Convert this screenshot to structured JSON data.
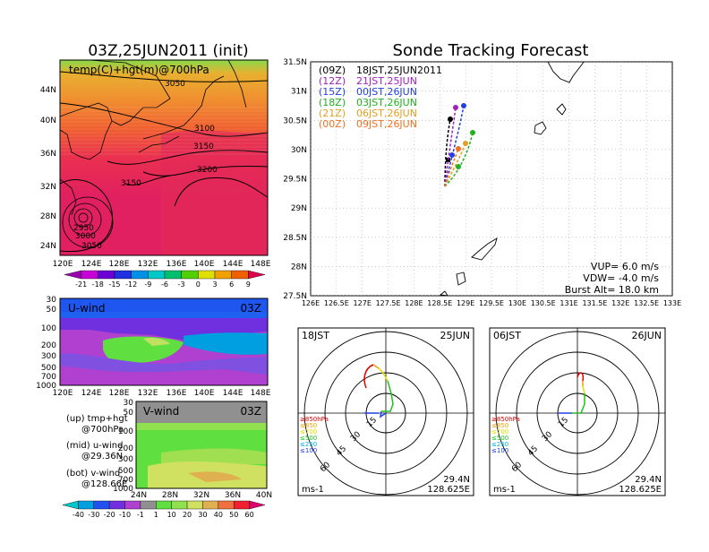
{
  "left_panel": {
    "title": "03Z,25JUN2011 (init)",
    "map_label": "temp(C)+hgt(m)@700hPa",
    "lat_ticks": [
      "44N",
      "40N",
      "36N",
      "32N",
      "28N",
      "24N"
    ],
    "lon_ticks": [
      "120E",
      "124E",
      "128E",
      "132E",
      "136E",
      "140E",
      "144E",
      "148E"
    ],
    "contour_labels": [
      "3050",
      "3100",
      "3150",
      "3200",
      "3150",
      "2950",
      "3000",
      "3050"
    ],
    "temp_colorbar": [
      "-21",
      "-18",
      "-15",
      "-12",
      "-9",
      "-6",
      "-3",
      "0",
      "3",
      "6",
      "9"
    ],
    "temp_colors": [
      "#9b00b0",
      "#c800d8",
      "#6a00d6",
      "#2030e0",
      "#0090e8",
      "#00c8c8",
      "#00c070",
      "#50d000",
      "#e0e000",
      "#f0a000",
      "#f06000",
      "#e00050"
    ]
  },
  "uwind_panel": {
    "label": "U-wind",
    "time": "03Z",
    "pressure_ticks": [
      "30",
      "50",
      "100",
      "200",
      "300",
      "500",
      "700",
      "1000"
    ],
    "lon_ticks": [
      "120E",
      "124E",
      "128E",
      "132E",
      "136E",
      "140E",
      "144E",
      "148E"
    ]
  },
  "vwind_panel": {
    "label": "V-wind",
    "time": "03Z",
    "pressure_ticks": [
      "30",
      "50",
      "100",
      "200",
      "300",
      "500",
      "700",
      "1000"
    ],
    "lat_ticks": [
      "24N",
      "28N",
      "32N",
      "36N",
      "40N"
    ]
  },
  "wind_colorbar": {
    "labels": [
      "-40",
      "-30",
      "-20",
      "-10",
      "-1",
      "1",
      "10",
      "20",
      "30",
      "40",
      "50",
      "60"
    ],
    "colors": [
      "#00c8c8",
      "#00a0e0",
      "#2050f0",
      "#7030e0",
      "#b040d0",
      "#909090",
      "#60e040",
      "#90e050",
      "#d0e060",
      "#e0b050",
      "#f07040",
      "#f02030",
      "#e00070"
    ]
  },
  "legend_notes": [
    {
      "line1": "(up) tmp+hgt",
      "line2": "@700hPa"
    },
    {
      "line1": "(mid) u-wind",
      "line2": "@29.36N"
    },
    {
      "line1": "(bot) v-wind",
      "line2": "@128.66E"
    }
  ],
  "main_title": "Sonde Tracking Forecast",
  "track_map": {
    "lat_ticks": [
      "31.5N",
      "31N",
      "30.5N",
      "30N",
      "29.5N",
      "29N",
      "28.5N",
      "28N",
      "27.5N"
    ],
    "lon_ticks": [
      "126E",
      "126.5E",
      "127E",
      "127.5E",
      "128E",
      "128.5E",
      "129E",
      "129.5E",
      "130E",
      "130.5E",
      "131E",
      "131.5E",
      "132E",
      "132.5E",
      "133E"
    ],
    "launches": [
      {
        "code": "(09Z)",
        "label": "18JST,25JUN2011",
        "color": "#000000"
      },
      {
        "code": "(12Z)",
        "label": "21JST,25JUN",
        "color": "#a020c0"
      },
      {
        "code": "(15Z)",
        "label": "00JST,26JUN",
        "color": "#2040e0"
      },
      {
        "code": "(18Z)",
        "label": "03JST,26JUN",
        "color": "#20b020"
      },
      {
        "code": "(21Z)",
        "label": "06JST,26JUN",
        "color": "#e0a020"
      },
      {
        "code": "(00Z)",
        "label": "09JST,26JUN",
        "color": "#f07020"
      }
    ],
    "params": [
      "VUP= 6.0 m/s",
      "VDW= -4.0 m/s",
      "Burst Alt= 18.0 km"
    ]
  },
  "hodographs": [
    {
      "time": "18JST",
      "date": "25JUN",
      "lat": "29.4N",
      "lon": "128.625E",
      "unit": "ms-1",
      "ring_labels": [
        "15",
        "30",
        "45",
        "60"
      ],
      "levels": [
        {
          "label": "≥850hPa",
          "color": "#e00000"
        },
        {
          "label": "≤850",
          "color": "#f0a000"
        },
        {
          "label": "≤700",
          "color": "#e0e000"
        },
        {
          "label": "≤500",
          "color": "#20c020"
        },
        {
          "label": "≤250",
          "color": "#00b0e0"
        },
        {
          "label": "≤100",
          "color": "#2040e0"
        }
      ]
    },
    {
      "time": "06JST",
      "date": "26JUN",
      "lat": "29.4N",
      "lon": "128.625E",
      "unit": "ms-1",
      "ring_labels": [
        "15",
        "30",
        "45",
        "60"
      ],
      "levels": [
        {
          "label": "≥850hPa",
          "color": "#e00000"
        },
        {
          "label": "≤850",
          "color": "#f0a000"
        },
        {
          "label": "≤700",
          "color": "#e0e000"
        },
        {
          "label": "≤500",
          "color": "#20c020"
        },
        {
          "label": "≤250",
          "color": "#00b0e0"
        },
        {
          "label": "≤100",
          "color": "#2040e0"
        }
      ]
    }
  ]
}
